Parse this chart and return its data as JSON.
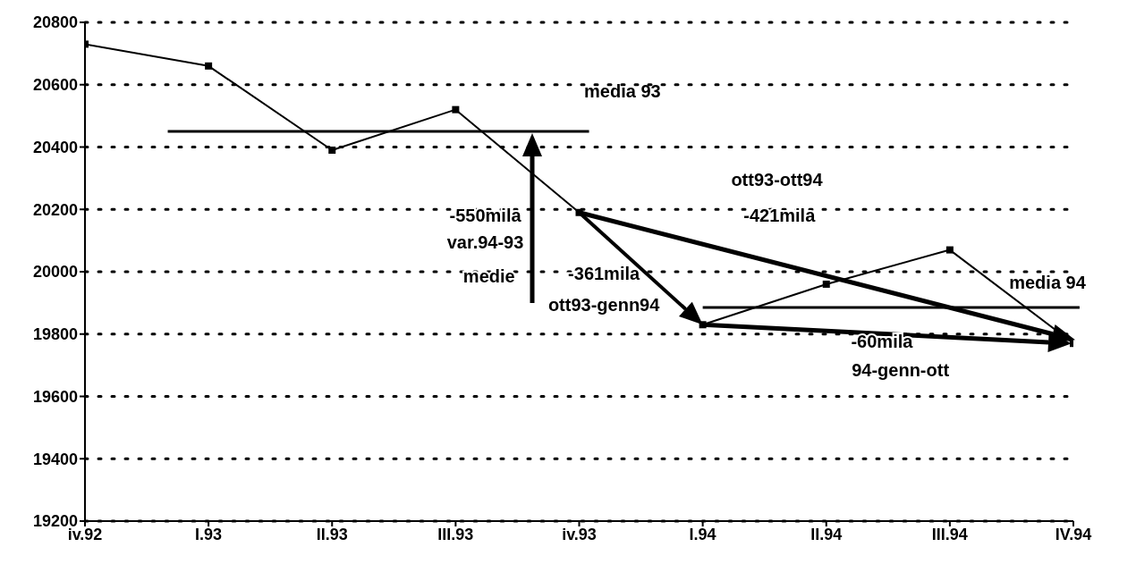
{
  "chart_data": {
    "type": "line",
    "categories": [
      "iv.92",
      "I.93",
      "II.93",
      "III.93",
      "iv.93",
      "I.94",
      "II.94",
      "III.94",
      "IV.94"
    ],
    "series": [
      {
        "color": "#000000",
        "values": [
          20730,
          20660,
          20390,
          20520,
          20190,
          19830,
          19960,
          20070,
          19770
        ]
      }
    ],
    "ylim": [
      19200,
      20800
    ],
    "yticks": [
      19200,
      19400,
      19600,
      19800,
      20000,
      20200,
      20400,
      20600,
      20800
    ],
    "grid": "y",
    "marker": "square",
    "line_style": "solid",
    "ref_lines": [
      {
        "axis": "y",
        "value": 20450,
        "label": "media 93",
        "color": "#000000"
      },
      {
        "axis": "y",
        "value": 19885,
        "label": "media 94",
        "color": "#000000"
      }
    ],
    "annotations": [
      "-550mila",
      "var.94-93",
      "medie",
      "-361mila",
      "ott93-genn94",
      "ott93-ott94",
      "-421mila",
      "-60mila",
      "94-genn-ott"
    ]
  }
}
